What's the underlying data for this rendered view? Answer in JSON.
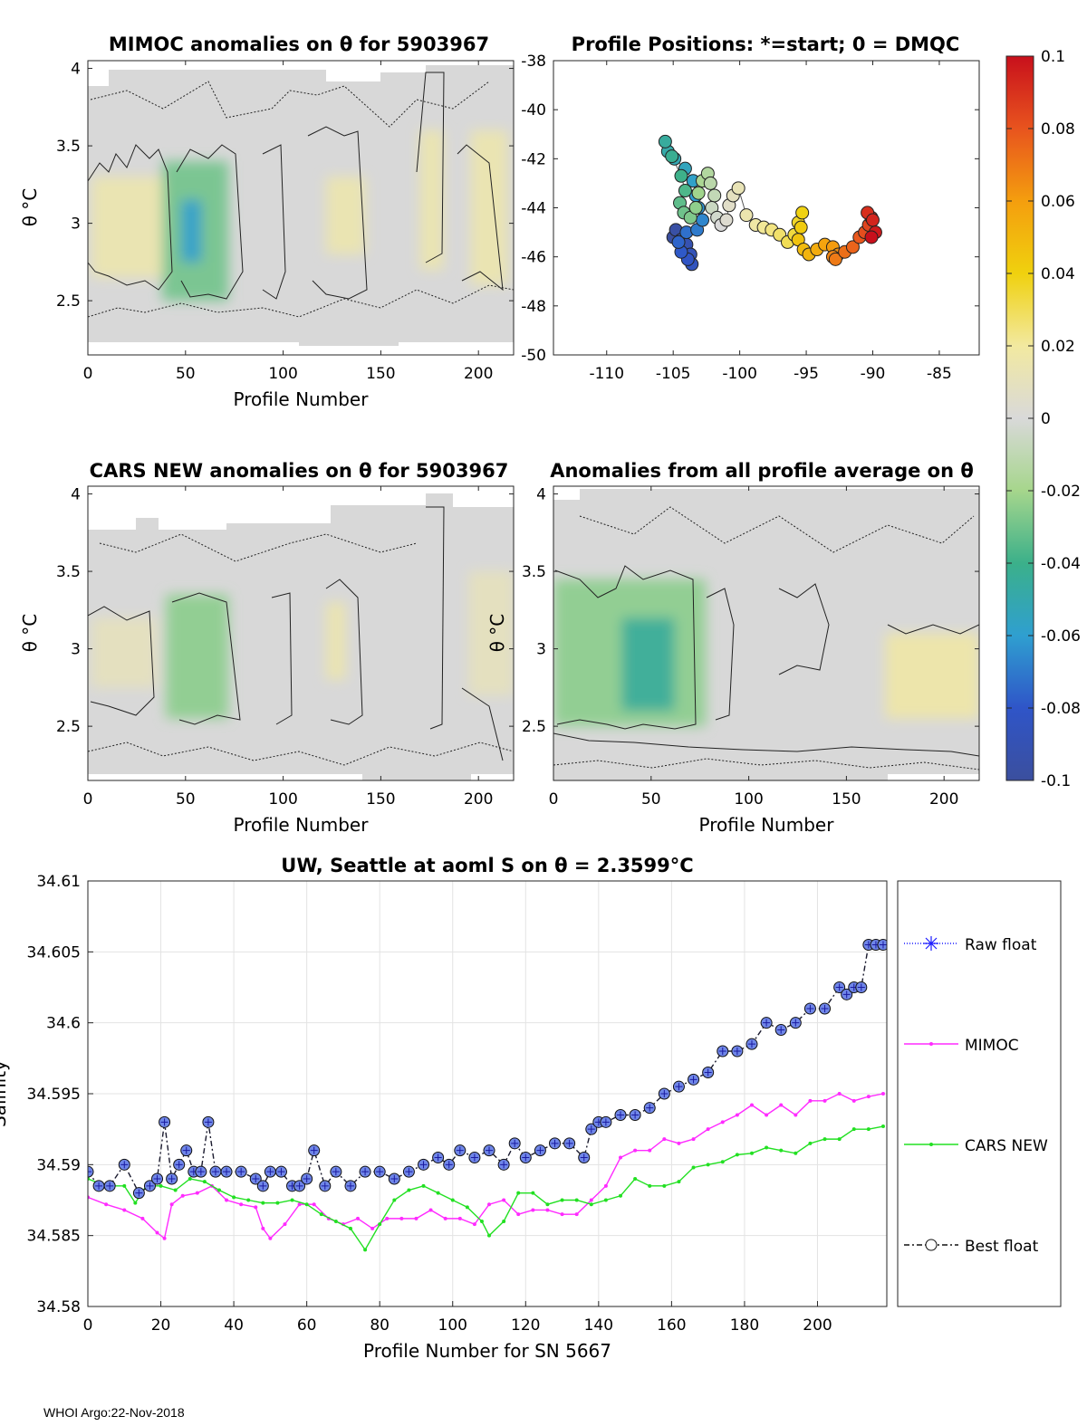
{
  "footer": "WHOI Argo:22-Nov-2018",
  "panels": {
    "mimoc": {
      "title": "MIMOC anomalies on θ  for 5903967",
      "xlabel": "Profile Number",
      "ylabel": "θ °C"
    },
    "positions": {
      "title": "Profile Positions: *=start; 0 = DMQC"
    },
    "cars": {
      "title": "CARS NEW anomalies on θ for 5903967",
      "xlabel": "Profile Number",
      "ylabel": "θ °C"
    },
    "avg": {
      "title": "Anomalies from all profile average on θ",
      "xlabel": "Profile Number",
      "ylabel": "θ °C"
    }
  },
  "colorbar": {
    "min": -0.1,
    "max": 0.1,
    "ticks": [
      "0.1",
      "0.08",
      "0.06",
      "0.04",
      "0.02",
      "0",
      "-0.02",
      "-0.04",
      "-0.06",
      "-0.08",
      "-0.1"
    ]
  },
  "chart_data": [
    {
      "type": "heatmap",
      "id": "mimoc",
      "x_range": [
        0,
        218
      ],
      "y_range": [
        2.15,
        4.05
      ],
      "xticks": [
        0,
        50,
        100,
        150,
        200
      ],
      "yticks": [
        2.5,
        3,
        3.5,
        4
      ],
      "anomaly_blobs": [
        {
          "x": [
            2,
            38
          ],
          "y": [
            2.65,
            3.3
          ],
          "value": 0.015
        },
        {
          "x": [
            38,
            72
          ],
          "y": [
            2.5,
            3.4
          ],
          "value": -0.03
        },
        {
          "x": [
            48,
            58
          ],
          "y": [
            2.75,
            3.15
          ],
          "value": -0.06
        },
        {
          "x": [
            122,
            142
          ],
          "y": [
            2.8,
            3.3
          ],
          "value": 0.015
        },
        {
          "x": [
            170,
            182
          ],
          "y": [
            2.7,
            3.6
          ],
          "value": 0.015
        },
        {
          "x": [
            196,
            215
          ],
          "y": [
            2.6,
            3.6
          ],
          "value": 0.015
        }
      ]
    },
    {
      "type": "scatter",
      "id": "positions",
      "xlim": [
        -114,
        -82
      ],
      "ylim": [
        -50,
        -38
      ],
      "xticks": [
        -110,
        -105,
        -100,
        -95,
        -90,
        -85
      ],
      "yticks": [
        -38,
        -40,
        -42,
        -44,
        -46,
        -48,
        -50
      ],
      "track_lon": [
        -105,
        -104.8,
        -104.4,
        -104,
        -103.7,
        -103.6,
        -103.9,
        -104.4,
        -104.6,
        -104,
        -103.2,
        -102.8,
        -103.1,
        -103.3,
        -103.5,
        -104.1,
        -104.9,
        -105.4,
        -105.6,
        -105.1,
        -104.4,
        -104.1,
        -104.5,
        -104.2,
        -103.7,
        -103.3,
        -103.1,
        -102.8,
        -102.4,
        -102.2,
        -101.9,
        -102.1,
        -101.7,
        -101.4,
        -101.0,
        -100.8,
        -100.5,
        -100.1,
        -99.5,
        -98.8,
        -98.2,
        -97.6,
        -97.0,
        -96.4,
        -95.9,
        -95.6,
        -95.3,
        -95.4,
        -95.6,
        -95.2,
        -94.8,
        -94.2,
        -93.6,
        -93.0,
        -92.6,
        -93.0,
        -92.8,
        -92.1,
        -91.5,
        -91.0,
        -90.6,
        -90.3,
        -90.1,
        -90.4,
        -90.0,
        -89.8,
        -90.1
      ],
      "track_lat": [
        -45.2,
        -44.9,
        -45.3,
        -45.5,
        -45.9,
        -46.3,
        -46.1,
        -45.8,
        -45.4,
        -45.0,
        -44.9,
        -44.5,
        -44.0,
        -43.5,
        -42.9,
        -42.4,
        -42.0,
        -41.7,
        -41.3,
        -41.9,
        -42.7,
        -43.3,
        -43.8,
        -44.2,
        -44.4,
        -44.0,
        -43.4,
        -42.9,
        -42.6,
        -43.0,
        -43.5,
        -44.0,
        -44.4,
        -44.7,
        -44.5,
        -43.9,
        -43.5,
        -43.2,
        -44.3,
        -44.7,
        -44.8,
        -44.9,
        -45.1,
        -45.4,
        -45.1,
        -44.6,
        -44.2,
        -44.8,
        -45.3,
        -45.7,
        -45.9,
        -45.7,
        -45.5,
        -45.6,
        -45.9,
        -46.0,
        -46.1,
        -45.8,
        -45.6,
        -45.2,
        -45.0,
        -44.7,
        -44.4,
        -44.2,
        -44.5,
        -45.0,
        -45.2
      ]
    },
    {
      "type": "heatmap",
      "id": "cars",
      "x_range": [
        0,
        218
      ],
      "y_range": [
        2.15,
        4.05
      ],
      "xticks": [
        0,
        50,
        100,
        150,
        200
      ],
      "yticks": [
        2.5,
        3,
        3.5,
        4
      ],
      "anomaly_blobs": [
        {
          "x": [
            2,
            35
          ],
          "y": [
            2.75,
            3.2
          ],
          "value": 0.01
        },
        {
          "x": [
            40,
            72
          ],
          "y": [
            2.55,
            3.35
          ],
          "value": -0.025
        },
        {
          "x": [
            122,
            132
          ],
          "y": [
            2.8,
            3.3
          ],
          "value": 0.015
        },
        {
          "x": [
            195,
            218
          ],
          "y": [
            2.7,
            3.5
          ],
          "value": 0.01
        }
      ]
    },
    {
      "type": "heatmap",
      "id": "avg",
      "x_range": [
        0,
        218
      ],
      "y_range": [
        2.15,
        4.05
      ],
      "xticks": [
        0,
        50,
        100,
        150,
        200
      ],
      "yticks": [
        2.5,
        3,
        3.5,
        4
      ],
      "anomaly_blobs": [
        {
          "x": [
            0,
            78
          ],
          "y": [
            2.5,
            3.45
          ],
          "value": -0.025
        },
        {
          "x": [
            35,
            62
          ],
          "y": [
            2.6,
            3.2
          ],
          "value": -0.045
        },
        {
          "x": [
            170,
            218
          ],
          "y": [
            2.55,
            3.1
          ],
          "value": 0.018
        }
      ]
    },
    {
      "type": "line",
      "id": "salinity",
      "title": "UW, Seattle at aoml S on θ = 2.3599°C",
      "xlabel": "Profile Number for SN 5667",
      "ylabel": "Salinity",
      "xlim": [
        0,
        219
      ],
      "ylim": [
        34.58,
        34.61
      ],
      "xticks": [
        0,
        20,
        40,
        60,
        80,
        100,
        120,
        140,
        160,
        180,
        200
      ],
      "yticks": [
        "34.58",
        "34.585",
        "34.59",
        "34.595",
        "34.6",
        "34.605",
        "34.61"
      ],
      "legend": [
        "Raw float",
        "MIMOC",
        "CARS NEW",
        "Best float"
      ],
      "series": [
        {
          "name": "Raw float / Best float",
          "x": [
            0,
            3,
            6,
            10,
            14,
            17,
            19,
            21,
            23,
            25,
            27,
            29,
            31,
            33,
            35,
            38,
            42,
            46,
            48,
            50,
            53,
            56,
            58,
            60,
            62,
            65,
            68,
            72,
            76,
            80,
            84,
            88,
            92,
            96,
            99,
            102,
            106,
            110,
            114,
            117,
            120,
            124,
            128,
            132,
            136,
            138,
            140,
            142,
            146,
            150,
            154,
            158,
            162,
            166,
            170,
            174,
            178,
            182,
            186,
            190,
            194,
            198,
            202,
            206,
            208,
            210,
            212,
            214,
            216,
            218
          ],
          "y": [
            34.5895,
            34.5885,
            34.5885,
            34.59,
            34.588,
            34.5885,
            34.589,
            34.593,
            34.589,
            34.59,
            34.591,
            34.5895,
            34.5895,
            34.593,
            34.5895,
            34.5895,
            34.5895,
            34.589,
            34.5885,
            34.5895,
            34.5895,
            34.5885,
            34.5885,
            34.589,
            34.591,
            34.5885,
            34.5895,
            34.5885,
            34.5895,
            34.5895,
            34.589,
            34.5895,
            34.59,
            34.5905,
            34.59,
            34.591,
            34.5905,
            34.591,
            34.59,
            34.5915,
            34.5905,
            34.591,
            34.5915,
            34.5915,
            34.5905,
            34.5925,
            34.593,
            34.593,
            34.5935,
            34.5935,
            34.594,
            34.595,
            34.5955,
            34.596,
            34.5965,
            34.598,
            34.598,
            34.5985,
            34.6,
            34.5995,
            34.6,
            34.601,
            34.601,
            34.6025,
            34.602,
            34.6025,
            34.6025,
            34.6055,
            34.6055,
            34.6055
          ]
        },
        {
          "name": "MIMOC",
          "x": [
            0,
            5,
            10,
            15,
            19,
            21,
            23,
            26,
            30,
            34,
            38,
            42,
            46,
            48,
            50,
            54,
            58,
            62,
            66,
            70,
            74,
            78,
            82,
            86,
            90,
            94,
            98,
            102,
            106,
            110,
            114,
            118,
            122,
            126,
            130,
            134,
            138,
            142,
            146,
            150,
            154,
            158,
            162,
            166,
            170,
            174,
            178,
            182,
            186,
            190,
            194,
            198,
            202,
            206,
            210,
            214,
            218
          ],
          "y": [
            34.5877,
            34.5872,
            34.5868,
            34.5862,
            34.5852,
            34.5848,
            34.5872,
            34.5878,
            34.588,
            34.5885,
            34.5875,
            34.5872,
            34.587,
            34.5855,
            34.5848,
            34.5858,
            34.5872,
            34.5872,
            34.5862,
            34.5858,
            34.5862,
            34.5855,
            34.5862,
            34.5862,
            34.5862,
            34.5868,
            34.5862,
            34.5862,
            34.5858,
            34.5872,
            34.5875,
            34.5865,
            34.5868,
            34.5868,
            34.5865,
            34.5865,
            34.5875,
            34.5885,
            34.5905,
            34.591,
            34.591,
            34.5918,
            34.5915,
            34.5918,
            34.5925,
            34.593,
            34.5935,
            34.5942,
            34.5935,
            34.5942,
            34.5935,
            34.5945,
            34.5945,
            34.595,
            34.5945,
            34.5948,
            34.595
          ]
        },
        {
          "name": "CARS NEW",
          "x": [
            0,
            5,
            10,
            13,
            16,
            20,
            24,
            28,
            32,
            36,
            40,
            44,
            48,
            52,
            56,
            60,
            64,
            68,
            72,
            76,
            80,
            84,
            88,
            92,
            96,
            100,
            104,
            108,
            110,
            114,
            118,
            122,
            126,
            130,
            134,
            138,
            142,
            146,
            150,
            154,
            158,
            162,
            166,
            170,
            174,
            178,
            182,
            186,
            190,
            194,
            198,
            202,
            206,
            210,
            214,
            218
          ],
          "y": [
            34.589,
            34.5885,
            34.5885,
            34.5873,
            34.5885,
            34.5885,
            34.5882,
            34.589,
            34.5888,
            34.5882,
            34.5877,
            34.5875,
            34.5873,
            34.5873,
            34.5875,
            34.5872,
            34.5865,
            34.586,
            34.5855,
            34.584,
            34.5858,
            34.5875,
            34.5882,
            34.5885,
            34.588,
            34.5875,
            34.587,
            34.586,
            34.585,
            34.586,
            34.588,
            34.588,
            34.5872,
            34.5875,
            34.5875,
            34.5872,
            34.5875,
            34.5878,
            34.589,
            34.5885,
            34.5885,
            34.5888,
            34.5898,
            34.59,
            34.5902,
            34.5907,
            34.5908,
            34.5912,
            34.591,
            34.5908,
            34.5915,
            34.5918,
            34.5918,
            34.5925,
            34.5925,
            34.5927
          ]
        }
      ]
    }
  ]
}
